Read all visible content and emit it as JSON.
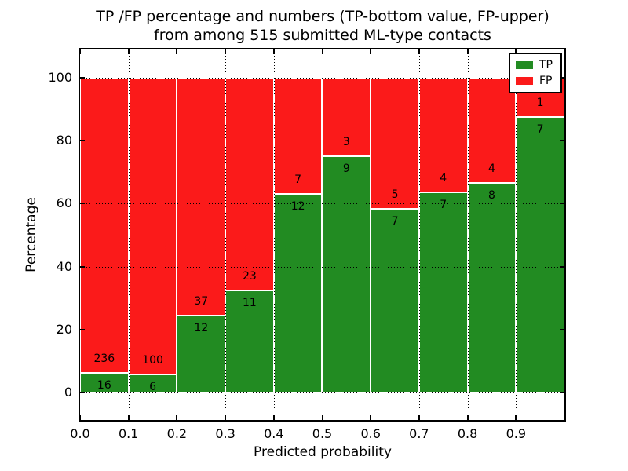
{
  "chart_data": {
    "type": "bar",
    "stacked": true,
    "normalized_to_percent": true,
    "title_lines": [
      "TP /FP percentage and numbers (TP-bottom value, FP-upper)",
      "from among 515 submitted ML-type contacts"
    ],
    "xlabel": "Predicted probability",
    "ylabel": "Percentage",
    "total_submitted": 515,
    "categories": [
      "0.0-0.1",
      "0.1-0.2",
      "0.2-0.3",
      "0.3-0.4",
      "0.4-0.5",
      "0.5-0.6",
      "0.6-0.7",
      "0.7-0.8",
      "0.8-0.9",
      "0.9-1.0"
    ],
    "series": [
      {
        "name": "TP",
        "color": "#228b22",
        "position": "bottom",
        "counts": [
          16,
          6,
          12,
          11,
          12,
          9,
          7,
          7,
          8,
          7
        ],
        "percent": [
          6.3,
          5.7,
          24.5,
          32.4,
          63.2,
          75.0,
          58.3,
          63.6,
          66.7,
          87.5
        ]
      },
      {
        "name": "FP",
        "color": "#fb1a1a",
        "position": "top",
        "counts": [
          236,
          100,
          37,
          23,
          7,
          3,
          5,
          4,
          4,
          1
        ],
        "percent": [
          93.7,
          94.3,
          75.5,
          67.6,
          36.8,
          25.0,
          41.7,
          36.4,
          33.3,
          12.5
        ]
      }
    ],
    "xticks": [
      "0.0",
      "0.1",
      "0.2",
      "0.3",
      "0.4",
      "0.5",
      "0.6",
      "0.7",
      "0.8",
      "0.9"
    ],
    "yticks": [
      0,
      20,
      40,
      60,
      80,
      100
    ],
    "xlim": [
      0.0,
      1.0
    ],
    "ylim": [
      -10,
      110
    ],
    "grid": {
      "linestyle": "dotted",
      "color": "#000000"
    },
    "bar_edge_color": "#ffffff",
    "legend": {
      "position": "upper-right",
      "entries": [
        "TP",
        "FP"
      ]
    }
  }
}
